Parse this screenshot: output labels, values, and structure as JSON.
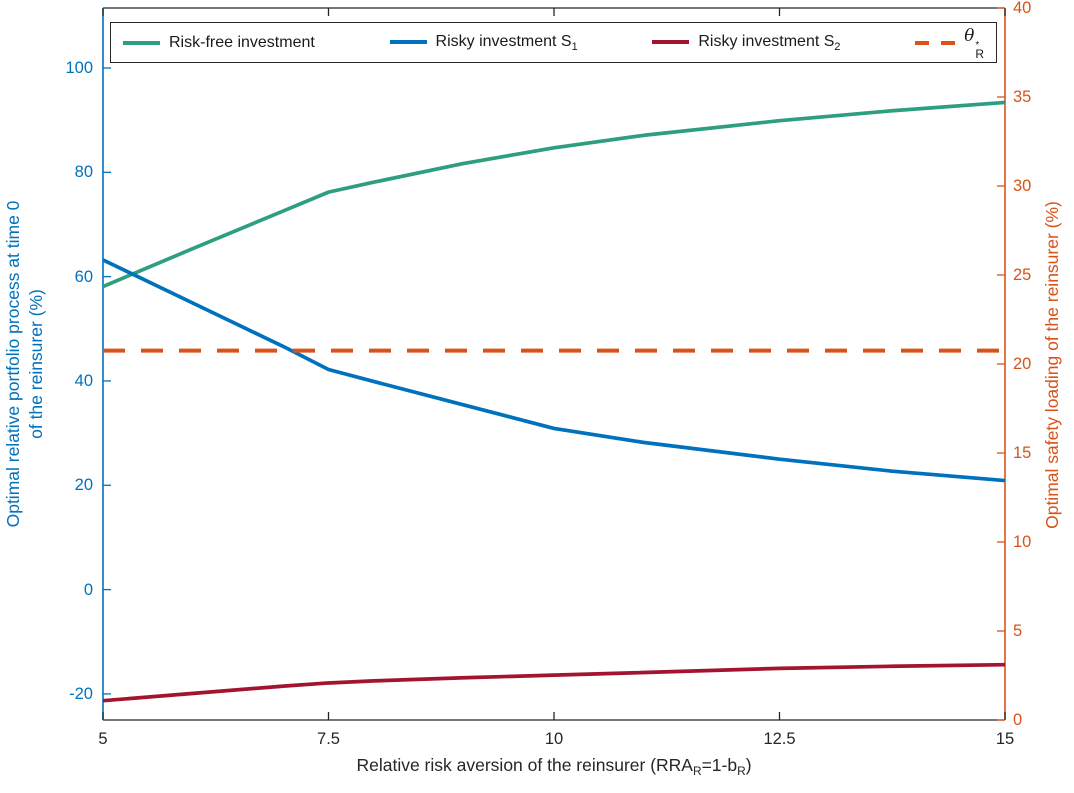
{
  "chart_data": {
    "type": "line",
    "title": "",
    "xlabel_parts": [
      {
        "t": "Relative risk aversion of the reinsurer (RRA"
      },
      {
        "sub": "R"
      },
      {
        "t": "=1-b"
      },
      {
        "sub": "R"
      },
      {
        "t": ")"
      }
    ],
    "ylabel_left_lines": [
      "Optimal relative portfolio process at time 0",
      "of the reinsurer (%)"
    ],
    "ylabel_right": "Optimal safety loading of the reinsurer (%)",
    "xlim": [
      5,
      15
    ],
    "x_ticks": [
      5,
      7.5,
      10,
      12.5,
      15
    ],
    "x_tick_labels": [
      "5",
      "7.5",
      "10",
      "12.5",
      "15"
    ],
    "ylim_left": [
      -25,
      111.5
    ],
    "y_ticks_left": [
      -20,
      0,
      20,
      40,
      60,
      80,
      100
    ],
    "ylim_right": [
      0,
      40
    ],
    "y_ticks_right": [
      0,
      5,
      10,
      15,
      20,
      25,
      30,
      35,
      40
    ],
    "grid": false,
    "legend_position": "top",
    "axis_colors": {
      "left": "#0072BD",
      "right": "#D95319",
      "x": "#262626"
    },
    "series": [
      {
        "name": "Risk-free investment",
        "name_parts": [
          {
            "t": "Risk-free investment"
          }
        ],
        "color": "#2E9E80",
        "line": "solid",
        "axis": "left",
        "x": [
          5,
          6,
          7,
          7.5,
          8,
          9,
          10,
          11,
          12.5,
          13.75,
          15
        ],
        "y": [
          58.1,
          65.4,
          72.6,
          76.2,
          78.1,
          81.7,
          84.7,
          87.1,
          89.9,
          91.8,
          93.4
        ]
      },
      {
        "name": "Risky investment S1",
        "name_parts": [
          {
            "t": "Risky investment S"
          },
          {
            "sub": "1"
          }
        ],
        "color": "#0072BD",
        "line": "solid",
        "axis": "left",
        "x": [
          5,
          6,
          7,
          7.5,
          8,
          9,
          10,
          11,
          12.5,
          13.75,
          15
        ],
        "y": [
          63.2,
          54.9,
          46.6,
          42.2,
          39.9,
          35.4,
          30.9,
          28.2,
          25.0,
          22.7,
          20.9
        ]
      },
      {
        "name": "Risky investment S2",
        "name_parts": [
          {
            "t": "Risky investment S"
          },
          {
            "sub": "2"
          }
        ],
        "color": "#A2142F",
        "line": "solid",
        "axis": "left",
        "x": [
          5,
          6,
          7,
          7.5,
          8,
          9,
          10,
          11,
          12.5,
          13.75,
          15
        ],
        "y": [
          -21.3,
          -19.9,
          -18.5,
          -17.9,
          -17.5,
          -16.9,
          -16.4,
          -15.9,
          -15.1,
          -14.7,
          -14.4
        ]
      },
      {
        "name": "theta_R_star",
        "name_parts": [
          {
            "math": "θ"
          },
          {
            "stack": {
              "sup": "*",
              "sub": "R"
            }
          }
        ],
        "color": "#D95319",
        "line": "dashed",
        "axis": "right",
        "value": 20.75
      }
    ]
  }
}
